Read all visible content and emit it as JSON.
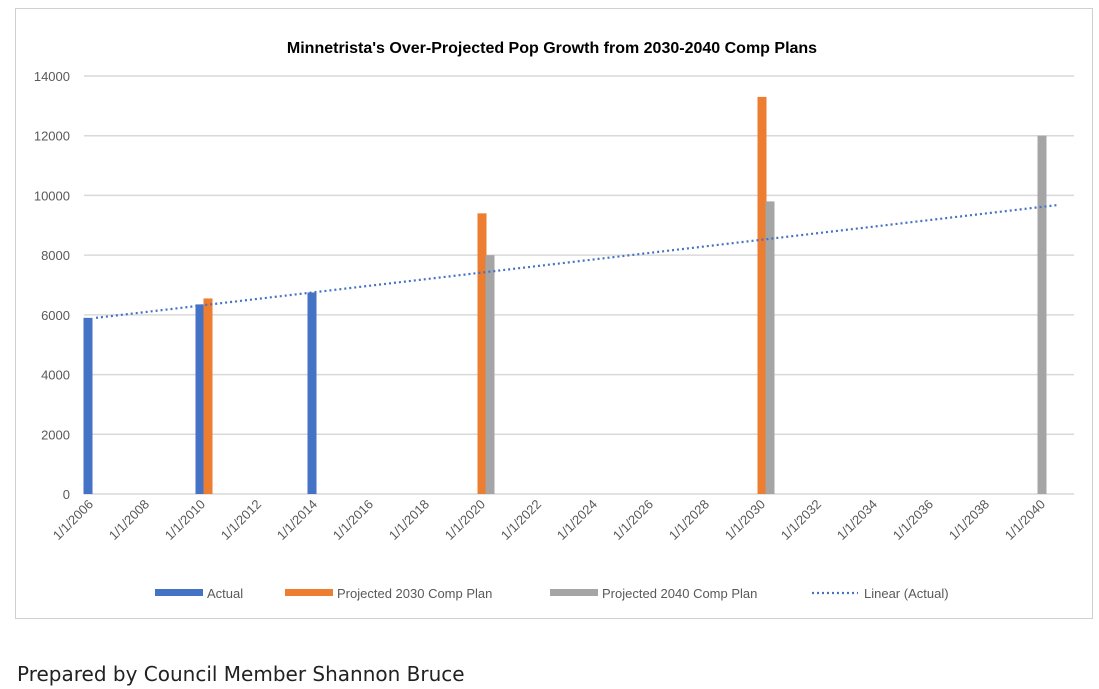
{
  "chart_data": {
    "type": "bar",
    "title": "Minnetrista's Over-Projected Pop Growth from 2030-2040 Comp Plans",
    "xlabel": "",
    "ylabel": "",
    "ylim": [
      0,
      14000
    ],
    "yticks": [
      "0",
      "2000",
      "4000",
      "6000",
      "8000",
      "10000",
      "12000",
      "14000"
    ],
    "ytick_values": [
      0,
      2000,
      4000,
      6000,
      8000,
      10000,
      12000,
      14000
    ],
    "xticks": [
      "1/1/2006",
      "1/1/2008",
      "1/1/2010",
      "1/1/2012",
      "1/1/2014",
      "1/1/2016",
      "1/1/2018",
      "1/1/2020",
      "1/1/2022",
      "1/1/2024",
      "1/1/2026",
      "1/1/2028",
      "1/1/2030",
      "1/1/2032",
      "1/1/2034",
      "1/1/2036",
      "1/1/2038",
      "1/1/2040"
    ],
    "xtick_years": [
      2006,
      2008,
      2010,
      2012,
      2014,
      2016,
      2018,
      2020,
      2022,
      2024,
      2026,
      2028,
      2030,
      2032,
      2034,
      2036,
      2038,
      2040
    ],
    "xlim": [
      2005.8,
      2041.2
    ],
    "grid": true,
    "legend_position": "bottom",
    "series": [
      {
        "name": "Actual",
        "color": "#4472C4",
        "points": [
          {
            "x": 2006,
            "y": 5900
          },
          {
            "x": 2010,
            "y": 6350
          },
          {
            "x": 2014,
            "y": 6750
          }
        ]
      },
      {
        "name": "Projected 2030 Comp Plan",
        "color": "#ED7D31",
        "points": [
          {
            "x": 2010,
            "y": 6550
          },
          {
            "x": 2020,
            "y": 9400
          },
          {
            "x": 2030,
            "y": 13300
          }
        ]
      },
      {
        "name": "Projected 2040 Comp Plan",
        "color": "#A5A5A5",
        "points": [
          {
            "x": 2020,
            "y": 8000
          },
          {
            "x": 2030,
            "y": 9800
          },
          {
            "x": 2040,
            "y": 12000
          }
        ]
      }
    ],
    "trendline": {
      "name": "Linear (Actual)",
      "color": "#4472C4",
      "style": "dotted",
      "start": {
        "x": 2006,
        "y": 5900
      },
      "end": {
        "x": 2040.5,
        "y": 9680
      }
    }
  },
  "caption": "Prepared by Council Member Shannon Bruce"
}
